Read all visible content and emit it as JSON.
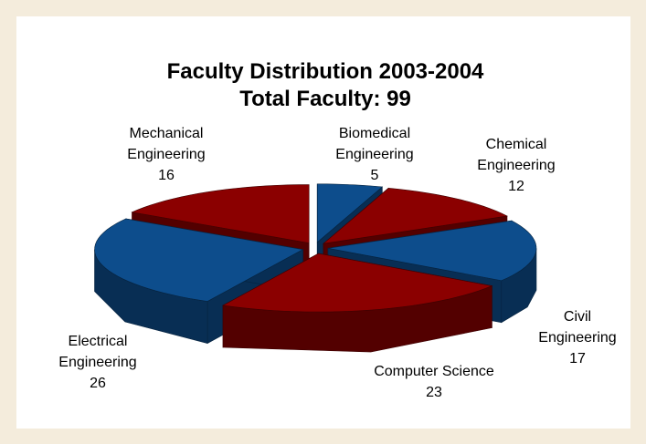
{
  "chart_data": {
    "type": "pie3d",
    "title": "Faculty Distribution 2003-2004",
    "subtitle": "Total Faculty: 99",
    "categories": [
      "Biomedical Engineering",
      "Chemical Engineering",
      "Civil Engineering",
      "Computer Science",
      "Electrical Engineering",
      "Mechanical Engineering"
    ],
    "values": [
      5,
      12,
      17,
      23,
      26,
      16
    ],
    "colors": [
      "#0d4d8c",
      "#8b0000",
      "#0d4d8c",
      "#8b0000",
      "#0d4d8c",
      "#8b0000"
    ]
  }
}
